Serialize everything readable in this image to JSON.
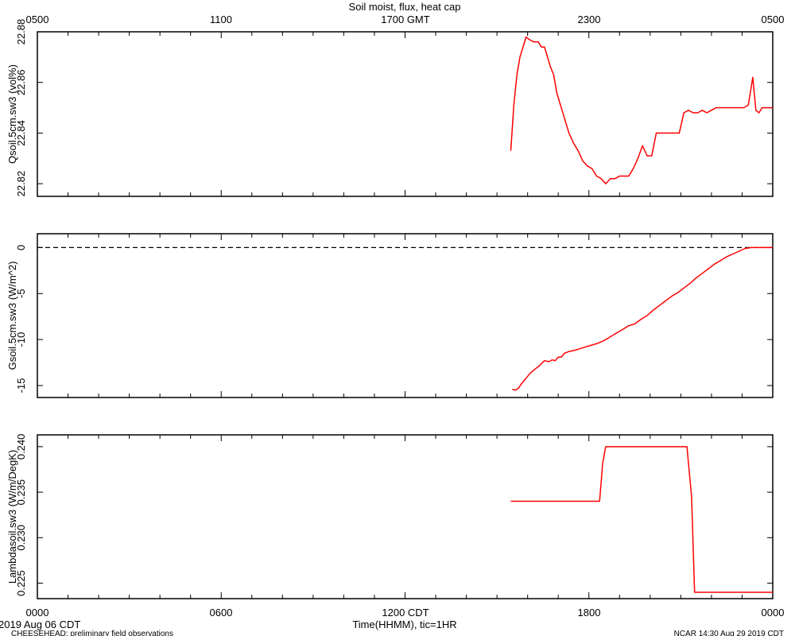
{
  "title": "Soil moist, flux, heat cap",
  "top_axis": {
    "ticks": [
      "0500",
      "1100",
      "1700 GMT",
      "2300",
      "0500"
    ]
  },
  "bottom_axis": {
    "ticks": [
      "0000",
      "0600",
      "1200 CDT",
      "1800",
      "0000"
    ],
    "label": "Time(HHMM), tic=1HR"
  },
  "footer": {
    "date": "2019 Aug 06 CDT",
    "project": "CHEESEHEAD: preliminary field observations",
    "stamp": "NCAR 14:30 Aug 29 2019 CDT"
  },
  "colors": {
    "series": "#ff0000",
    "axes": "#000000",
    "background": "#ffffff"
  },
  "chart_data": [
    {
      "type": "line",
      "ylabel": "Qsoil.5cm.sw3 (vol%)",
      "xlim": [
        0,
        24
      ],
      "ylim": [
        22.815,
        22.88
      ],
      "yticks": [
        22.82,
        22.84,
        22.86,
        22.88
      ],
      "ytick_labels": [
        "22.82",
        "22.84",
        "22.86",
        "22.88"
      ],
      "zero_line": false,
      "series": [
        {
          "x": [
            15.45,
            15.55,
            15.65,
            15.75,
            15.85,
            15.95,
            16.05,
            16.2,
            16.35,
            16.45,
            16.55,
            16.65,
            16.75,
            16.85,
            16.95,
            17.05,
            17.2,
            17.35,
            17.5,
            17.65,
            17.8,
            17.95,
            18.1,
            18.25,
            18.4,
            18.55,
            18.7,
            18.85,
            19.0,
            19.15,
            19.3,
            19.45,
            19.6,
            19.75,
            19.9,
            20.05,
            20.2,
            20.35,
            20.5,
            20.65,
            20.8,
            20.95,
            21.1,
            21.25,
            21.4,
            21.55,
            21.7,
            21.85,
            22.0,
            22.15,
            22.3,
            22.45,
            22.6,
            22.75,
            22.9,
            23.05,
            23.2,
            23.35,
            23.45,
            23.55,
            23.65,
            23.75,
            23.9,
            24.0
          ],
          "y": [
            22.833,
            22.851,
            22.863,
            22.87,
            22.874,
            22.878,
            22.877,
            22.876,
            22.876,
            22.874,
            22.874,
            22.87,
            22.866,
            22.863,
            22.856,
            22.852,
            22.846,
            22.84,
            22.836,
            22.833,
            22.829,
            22.827,
            22.826,
            22.823,
            22.822,
            22.82,
            22.822,
            22.822,
            22.823,
            22.823,
            22.823,
            22.826,
            22.83,
            22.835,
            22.831,
            22.831,
            22.84,
            22.84,
            22.84,
            22.84,
            22.84,
            22.84,
            22.848,
            22.849,
            22.848,
            22.848,
            22.849,
            22.848,
            22.849,
            22.85,
            22.85,
            22.85,
            22.85,
            22.85,
            22.85,
            22.85,
            22.851,
            22.862,
            22.849,
            22.848,
            22.85,
            22.85,
            22.85,
            22.85
          ]
        }
      ]
    },
    {
      "type": "line",
      "ylabel": "Gsoil.5cm.sw3 (W/m^2)",
      "xlim": [
        0,
        24
      ],
      "ylim": [
        -16.3,
        1.5
      ],
      "yticks": [
        0,
        -5,
        -10,
        -15
      ],
      "ytick_labels": [
        "0",
        "-5",
        "-10",
        "-15"
      ],
      "zero_line": true,
      "series": [
        {
          "x": [
            15.5,
            15.6,
            15.7,
            15.8,
            15.95,
            16.1,
            16.25,
            16.4,
            16.55,
            16.7,
            16.8,
            16.9,
            17.0,
            17.1,
            17.2,
            17.35,
            17.5,
            17.7,
            17.9,
            18.1,
            18.3,
            18.5,
            18.7,
            18.9,
            19.1,
            19.3,
            19.5,
            19.7,
            19.9,
            20.1,
            20.3,
            20.5,
            20.7,
            20.9,
            21.1,
            21.3,
            21.5,
            21.7,
            21.9,
            22.1,
            22.3,
            22.5,
            22.7,
            22.9,
            23.1,
            23.3,
            23.5,
            23.7,
            23.9,
            24.0
          ],
          "y": [
            -15.4,
            -15.5,
            -15.3,
            -14.8,
            -14.2,
            -13.6,
            -13.2,
            -12.8,
            -12.3,
            -12.4,
            -12.2,
            -12.3,
            -11.9,
            -11.9,
            -11.5,
            -11.3,
            -11.2,
            -11.0,
            -10.8,
            -10.6,
            -10.4,
            -10.1,
            -9.7,
            -9.3,
            -8.9,
            -8.5,
            -8.3,
            -7.8,
            -7.4,
            -6.8,
            -6.3,
            -5.8,
            -5.3,
            -4.9,
            -4.4,
            -3.9,
            -3.3,
            -2.8,
            -2.3,
            -1.8,
            -1.4,
            -1.0,
            -0.7,
            -0.4,
            -0.1,
            0.0,
            0.0,
            0.0,
            0.0,
            0.0
          ]
        }
      ]
    },
    {
      "type": "line",
      "ylabel": "Lambdasoil.sw3 (W/m/DegK)",
      "xlim": [
        0,
        24
      ],
      "ylim": [
        0.2233,
        0.2413
      ],
      "yticks": [
        0.225,
        0.23,
        0.235,
        0.24
      ],
      "ytick_labels": [
        "0.225",
        "0.230",
        "0.235",
        "0.240"
      ],
      "zero_line": false,
      "series": [
        {
          "x": [
            15.45,
            18.35,
            18.45,
            18.55,
            21.2,
            21.35,
            21.45,
            24.0
          ],
          "y": [
            0.234,
            0.234,
            0.2382,
            0.24,
            0.24,
            0.2345,
            0.224,
            0.224
          ]
        }
      ]
    }
  ]
}
